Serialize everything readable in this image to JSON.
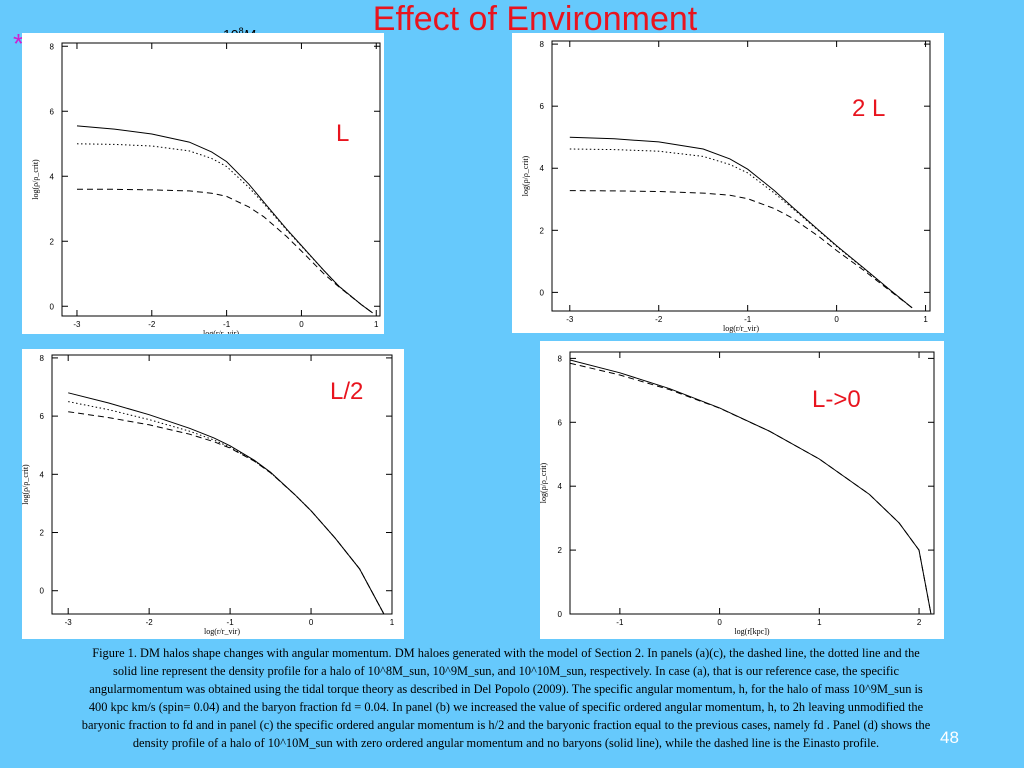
{
  "title": "Effect of Environment",
  "marker": "*",
  "legend": [
    {
      "symbol": "----",
      "base": "10",
      "exp": "8",
      "unit": "M"
    },
    {
      "symbol": "····",
      "base": "10",
      "exp": "9",
      "unit": "M"
    },
    {
      "symbol": "——",
      "base": "10",
      "exp": "10",
      "unit": "M"
    }
  ],
  "panel_labels": [
    "L",
    "2 L",
    "L/2",
    "L->0"
  ],
  "chart_data": [
    {
      "type": "line",
      "xlabel": "log(r/r_vir)",
      "ylabel": "log(ρ/ρ_crit)",
      "xlim": [
        -3.2,
        1.05
      ],
      "ylim": [
        -0.3,
        8.1
      ],
      "xticks": [
        "-3",
        "-2",
        "-1",
        "0",
        "1"
      ],
      "yticks": [
        "0",
        "2",
        "4",
        "6",
        "8"
      ],
      "series": [
        {
          "style": "dashed",
          "x": [
            -3,
            -2.5,
            -2,
            -1.5,
            -1.2,
            -1,
            -0.7,
            -0.5,
            -0.2,
            0,
            0.3,
            0.5,
            0.8,
            0.95
          ],
          "y": [
            3.6,
            3.6,
            3.58,
            3.55,
            3.48,
            3.38,
            3.05,
            2.75,
            2.15,
            1.7,
            1.0,
            0.6,
            0.05,
            -0.2
          ]
        },
        {
          "style": "dotted",
          "x": [
            -3,
            -2.5,
            -2,
            -1.5,
            -1.2,
            -1,
            -0.7,
            -0.5,
            -0.2,
            0,
            0.3,
            0.5,
            0.8,
            0.95
          ],
          "y": [
            5.0,
            4.98,
            4.93,
            4.78,
            4.55,
            4.3,
            3.65,
            3.15,
            2.35,
            1.85,
            1.1,
            0.62,
            0.05,
            -0.2
          ]
        },
        {
          "style": "solid",
          "x": [
            -3,
            -2.5,
            -2,
            -1.5,
            -1.2,
            -1,
            -0.7,
            -0.5,
            -0.2,
            0,
            0.3,
            0.5,
            0.8,
            0.95
          ],
          "y": [
            5.55,
            5.45,
            5.3,
            5.05,
            4.75,
            4.45,
            3.75,
            3.2,
            2.38,
            1.87,
            1.1,
            0.62,
            0.05,
            -0.2
          ]
        }
      ]
    },
    {
      "type": "line",
      "xlabel": "log(r/r_vir)",
      "ylabel": "log(ρ/ρ_crit)",
      "xlim": [
        -3.2,
        1.05
      ],
      "ylim": [
        -0.6,
        8.1
      ],
      "xticks": [
        "-3",
        "-2",
        "-1",
        "0",
        "1"
      ],
      "yticks": [
        "0",
        "2",
        "4",
        "6",
        "8"
      ],
      "series": [
        {
          "style": "dashed",
          "x": [
            -3,
            -2.5,
            -2,
            -1.5,
            -1.2,
            -1,
            -0.7,
            -0.5,
            -0.2,
            0,
            0.3,
            0.6,
            0.85
          ],
          "y": [
            3.28,
            3.27,
            3.25,
            3.2,
            3.13,
            3.02,
            2.7,
            2.4,
            1.8,
            1.35,
            0.72,
            0.05,
            -0.5
          ]
        },
        {
          "style": "dotted",
          "x": [
            -3,
            -2.5,
            -2,
            -1.5,
            -1.2,
            -1,
            -0.7,
            -0.5,
            -0.2,
            0,
            0.3,
            0.6,
            0.85
          ],
          "y": [
            4.62,
            4.6,
            4.55,
            4.38,
            4.12,
            3.85,
            3.2,
            2.72,
            1.98,
            1.48,
            0.78,
            0.08,
            -0.5
          ]
        },
        {
          "style": "solid",
          "x": [
            -3,
            -2.5,
            -2,
            -1.5,
            -1.2,
            -1,
            -0.7,
            -0.5,
            -0.2,
            0,
            0.3,
            0.6,
            0.85
          ],
          "y": [
            5.0,
            4.95,
            4.85,
            4.62,
            4.3,
            3.97,
            3.28,
            2.76,
            2.0,
            1.5,
            0.8,
            0.08,
            -0.5
          ]
        }
      ]
    },
    {
      "type": "line",
      "xlabel": "log(r/r_vir)",
      "ylabel": "log(ρ/ρ_crit)",
      "xlim": [
        -3.2,
        1.0
      ],
      "ylim": [
        -0.8,
        8.1
      ],
      "xticks": [
        "-3",
        "-2",
        "-1",
        "0",
        "1"
      ],
      "yticks": [
        "0",
        "2",
        "4",
        "6",
        "8"
      ],
      "series": [
        {
          "style": "dashed",
          "x": [
            -3,
            -2.5,
            -2,
            -1.5,
            -1.2,
            -1,
            -0.7,
            -0.5,
            -0.2,
            0,
            0.3,
            0.6,
            0.9
          ],
          "y": [
            6.15,
            5.95,
            5.7,
            5.38,
            5.12,
            4.9,
            4.45,
            4.05,
            3.3,
            2.75,
            1.8,
            0.75,
            -0.8
          ]
        },
        {
          "style": "dotted",
          "x": [
            -3,
            -2.5,
            -2,
            -1.5,
            -1.2,
            -1,
            -0.7,
            -0.5,
            -0.2,
            0,
            0.3,
            0.6,
            0.9
          ],
          "y": [
            6.5,
            6.22,
            5.88,
            5.48,
            5.18,
            4.93,
            4.46,
            4.06,
            3.3,
            2.75,
            1.8,
            0.75,
            -0.8
          ]
        },
        {
          "style": "solid",
          "x": [
            -3,
            -2.5,
            -2,
            -1.5,
            -1.2,
            -1,
            -0.7,
            -0.5,
            -0.2,
            0,
            0.3,
            0.6,
            0.9
          ],
          "y": [
            6.8,
            6.45,
            6.05,
            5.58,
            5.25,
            4.98,
            4.48,
            4.07,
            3.3,
            2.75,
            1.8,
            0.75,
            -0.8
          ]
        }
      ]
    },
    {
      "type": "line",
      "xlabel": "log(r[kpc])",
      "ylabel": "log(ρ/ρ_crit)",
      "xlim": [
        -1.5,
        2.15
      ],
      "ylim": [
        0,
        8.2
      ],
      "xticks": [
        "-1",
        "0",
        "1",
        "2"
      ],
      "yticks": [
        "0",
        "2",
        "4",
        "6",
        "8"
      ],
      "series": [
        {
          "style": "solid",
          "x": [
            -1.5,
            -1,
            -0.5,
            0,
            0.5,
            1,
            1.5,
            1.8,
            2.0,
            2.12
          ],
          "y": [
            7.95,
            7.55,
            7.05,
            6.45,
            5.72,
            4.85,
            3.75,
            2.85,
            2.0,
            0.0
          ]
        },
        {
          "style": "dashed",
          "x": [
            -1.5,
            -1,
            -0.5,
            0,
            0.5,
            1,
            1.5,
            1.8,
            2.0,
            2.12
          ],
          "y": [
            7.85,
            7.48,
            7.02,
            6.44,
            5.72,
            4.85,
            3.75,
            2.85,
            2.0,
            0.0
          ]
        }
      ]
    }
  ],
  "caption": [
    "Figure 1.   DM halos shape   changes with angular momentum. DM haloes generated with the model of Section 2. In panels (a)(c), the dashed line, the dotted line and the",
    "solid line represent the density profile for a halo of 10^8M_sun, 10^9M_sun, and 10^10M_sun, respectively. In case (a), that is our reference case, the specific",
    "angularmomentum was obtained using the tidal torque theory as described in Del Popolo (2009). The specific angular momentum, h, for the halo of mass 10^9M_sun is",
    "400 kpc km/s (spin= 0.04) and the baryon fraction fd = 0.04. In panel (b) we increased the value of specific ordered angular momentum, h, to 2h leaving unmodified the",
    "baryonic fraction to fd and in panel (c) the specific ordered angular momentum is h/2 and the baryonic fraction equal to the previous cases, namely fd . Panel (d) shows the",
    "density profile of a halo of 10^10M_sun with zero ordered angular momentum and no baryons (solid line), while the dashed line is the Einasto profile."
  ],
  "page_number": "48"
}
